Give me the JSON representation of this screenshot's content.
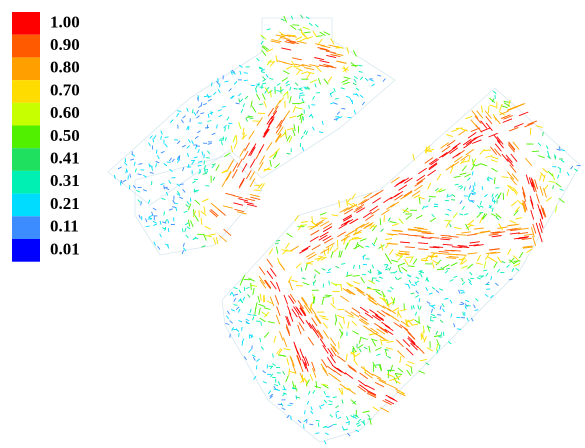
{
  "legend": {
    "items": [
      {
        "label": "1.00",
        "color": "#ff0000"
      },
      {
        "label": "0.90",
        "color": "#ff5a00"
      },
      {
        "label": "0.80",
        "color": "#ffa000"
      },
      {
        "label": "0.70",
        "color": "#ffdc00"
      },
      {
        "label": "0.60",
        "color": "#c8ff00"
      },
      {
        "label": "0.50",
        "color": "#50f000"
      },
      {
        "label": "0.41",
        "color": "#20e060"
      },
      {
        "label": "0.31",
        "color": "#00f0b4"
      },
      {
        "label": "0.21",
        "color": "#00dcff"
      },
      {
        "label": "0.11",
        "color": "#3c8cff"
      },
      {
        "label": "0.01",
        "color": "#0000ff"
      }
    ]
  }
}
